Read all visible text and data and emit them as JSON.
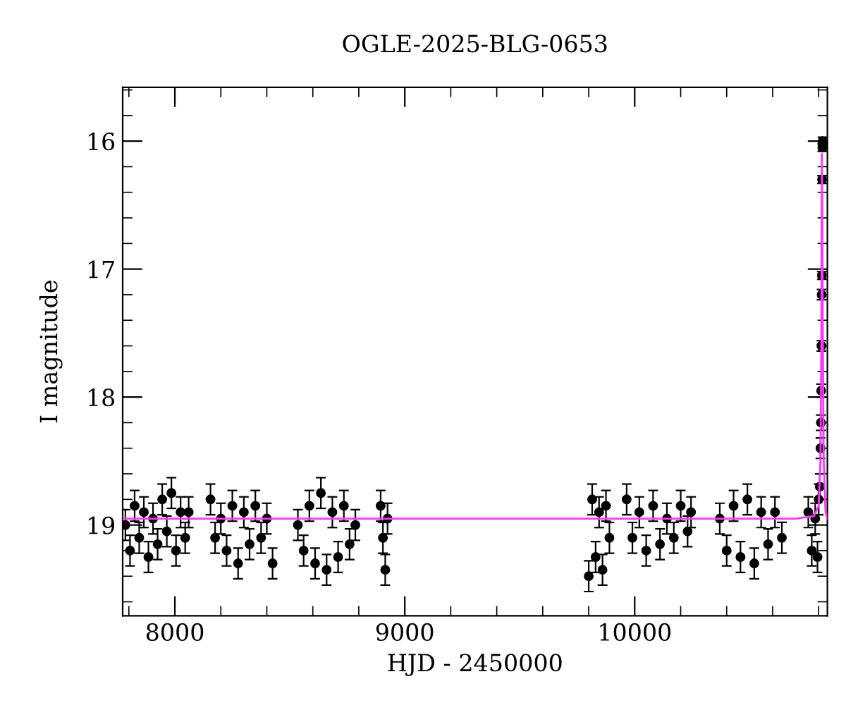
{
  "chart_data": {
    "type": "scatter",
    "title": "OGLE-2025-BLG-0653",
    "xlabel": "HJD - 2450000",
    "ylabel": "I magnitude",
    "xlim": [
      7773,
      10838
    ],
    "ylim": [
      19.71,
      15.58
    ],
    "xticks": [
      8000,
      9000,
      10000
    ],
    "yticks": [
      16,
      17,
      18,
      19
    ],
    "grid": false,
    "legend": false,
    "marker": "circle",
    "series": [
      {
        "color": "#000000",
        "x": [
          7785,
          7805,
          7825,
          7845,
          7865,
          7885,
          7905,
          7925,
          7945,
          7965,
          7985,
          8005,
          8025,
          8045,
          8060,
          8155,
          8175,
          8200,
          8225,
          8250,
          8275,
          8300,
          8325,
          8350,
          8375,
          8400,
          8425,
          8535,
          8560,
          8585,
          8610,
          8635,
          8660,
          8685,
          8710,
          8735,
          8760,
          8785,
          8895,
          8905,
          8915,
          8925,
          9800,
          9815,
          9830,
          9845,
          9860,
          9875,
          9890,
          9965,
          9990,
          10020,
          10050,
          10080,
          10110,
          10140,
          10170,
          10200,
          10230,
          10245,
          10370,
          10400,
          10430,
          10460,
          10490,
          10520,
          10550,
          10580,
          10610,
          10640,
          10755,
          10770,
          10785,
          10795,
          10800,
          10805,
          10808,
          10810,
          10811,
          10812,
          10813,
          10814,
          10815,
          10816,
          10817
        ],
        "values": [
          19.0,
          19.2,
          18.85,
          19.1,
          18.9,
          19.25,
          18.95,
          19.15,
          18.8,
          19.05,
          18.75,
          19.2,
          18.9,
          19.1,
          18.9,
          18.8,
          19.1,
          18.95,
          19.2,
          18.85,
          19.3,
          18.9,
          19.15,
          18.85,
          19.1,
          18.95,
          19.3,
          19.0,
          19.2,
          18.85,
          19.3,
          18.75,
          19.35,
          18.9,
          19.25,
          18.85,
          19.15,
          19.0,
          18.85,
          19.1,
          19.35,
          18.95,
          19.4,
          18.8,
          19.25,
          18.9,
          19.35,
          18.85,
          19.1,
          18.8,
          19.1,
          18.9,
          19.2,
          18.85,
          19.15,
          18.95,
          19.1,
          18.85,
          19.05,
          18.9,
          18.95,
          19.2,
          18.85,
          19.25,
          18.8,
          19.3,
          18.9,
          19.15,
          18.9,
          19.1,
          18.9,
          19.2,
          18.95,
          19.25,
          18.8,
          18.7,
          18.4,
          18.2,
          17.95,
          17.6,
          17.2,
          17.05,
          16.3,
          16.05,
          16.0
        ],
        "errors": [
          0.12,
          0.12,
          0.12,
          0.12,
          0.12,
          0.12,
          0.12,
          0.12,
          0.12,
          0.12,
          0.12,
          0.12,
          0.12,
          0.12,
          0.12,
          0.12,
          0.12,
          0.12,
          0.12,
          0.12,
          0.12,
          0.12,
          0.12,
          0.12,
          0.12,
          0.12,
          0.12,
          0.12,
          0.12,
          0.12,
          0.12,
          0.12,
          0.12,
          0.12,
          0.12,
          0.12,
          0.12,
          0.12,
          0.12,
          0.12,
          0.12,
          0.12,
          0.12,
          0.12,
          0.12,
          0.12,
          0.12,
          0.12,
          0.12,
          0.12,
          0.12,
          0.12,
          0.12,
          0.12,
          0.12,
          0.12,
          0.12,
          0.12,
          0.12,
          0.12,
          0.12,
          0.12,
          0.12,
          0.12,
          0.12,
          0.12,
          0.12,
          0.12,
          0.12,
          0.12,
          0.12,
          0.12,
          0.12,
          0.12,
          0.12,
          0.1,
          0.08,
          0.06,
          0.05,
          0.04,
          0.04,
          0.03,
          0.03,
          0.03,
          0.03
        ]
      },
      {
        "type": "line",
        "color": "#ff33ff",
        "marker": "none",
        "x": [
          7773,
          10700,
          10780,
          10800,
          10808,
          10812,
          10814,
          10816,
          10818,
          10822,
          10830,
          10838
        ],
        "values": [
          18.95,
          18.95,
          18.93,
          18.85,
          18.5,
          17.5,
          16.1,
          16.5,
          17.5,
          18.5,
          18.9,
          18.95
        ]
      }
    ]
  }
}
